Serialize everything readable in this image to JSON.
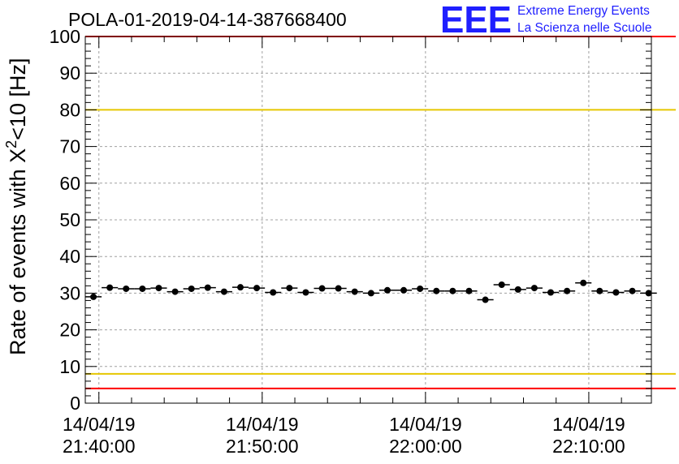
{
  "logo": {
    "mark": "EEE",
    "line1": "Extreme Energy Events",
    "line2": "La Scienza nelle Scuole"
  },
  "colors": {
    "limit_outer": "#ff0000",
    "limit_inner": "#e6c700",
    "logo": "#1f1fff",
    "markers": "#000000",
    "grid": "#a0a0a0"
  },
  "chart_data": {
    "type": "scatter",
    "title": "POLA-01-2019-04-14-387668400",
    "ylabel_parts": {
      "before": "Rate of events with X",
      "sup": "2",
      "after": "<10 [Hz]"
    },
    "ylim": [
      0,
      100
    ],
    "y_ticks": [
      0,
      10,
      20,
      30,
      40,
      50,
      60,
      70,
      80,
      90,
      100
    ],
    "x_range": [
      "14/04/19 21:39:10",
      "14/04/19 22:13:50"
    ],
    "x_tick_labels": [
      {
        "date": "14/04/19",
        "time": "21:40:00"
      },
      {
        "date": "14/04/19",
        "time": "21:50:00"
      },
      {
        "date": "14/04/19",
        "time": "22:00:00"
      },
      {
        "date": "14/04/19",
        "time": "22:10:00"
      }
    ],
    "grid": true,
    "bin_width_seconds": 60,
    "reference_lines": [
      {
        "y": 100,
        "color": "#ff0000"
      },
      {
        "y": 80,
        "color": "#e6c700"
      },
      {
        "y": 8,
        "color": "#e6c700"
      },
      {
        "y": 4,
        "color": "#ff0000"
      }
    ],
    "series": [
      {
        "x": [
          "21:39:40",
          "21:40:40",
          "21:41:40",
          "21:42:40",
          "21:43:40",
          "21:44:40",
          "21:45:40",
          "21:46:40",
          "21:47:40",
          "21:48:40",
          "21:49:40",
          "21:50:40",
          "21:51:40",
          "21:52:40",
          "21:53:40",
          "21:54:40",
          "21:55:40",
          "21:56:40",
          "21:57:40",
          "21:58:40",
          "21:59:40",
          "22:00:40",
          "22:01:40",
          "22:02:40",
          "22:03:40",
          "22:04:40",
          "22:05:40",
          "22:06:40",
          "22:07:40",
          "22:08:40",
          "22:09:40",
          "22:10:40",
          "22:11:40",
          "22:12:40",
          "22:13:40"
        ],
        "values": [
          29.0,
          31.5,
          31.2,
          31.2,
          31.4,
          30.4,
          31.2,
          31.5,
          30.4,
          31.6,
          31.4,
          30.2,
          31.4,
          30.2,
          31.3,
          31.3,
          30.4,
          30.0,
          30.8,
          30.8,
          31.2,
          30.6,
          30.6,
          30.6,
          28.2,
          32.3,
          31.0,
          31.4,
          30.2,
          30.6,
          32.8,
          30.6,
          30.2,
          30.6,
          30.0
        ]
      }
    ]
  }
}
